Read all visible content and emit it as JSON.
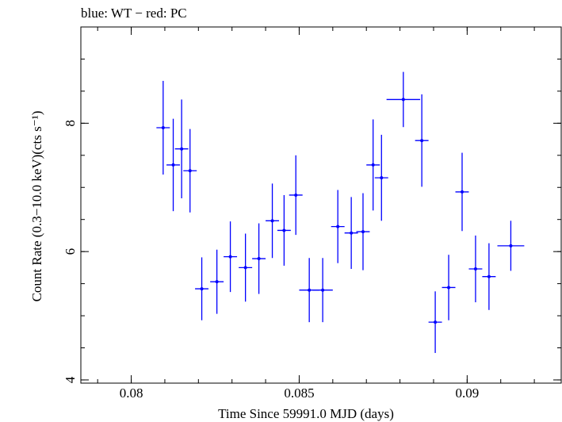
{
  "chart_data": {
    "type": "scatter",
    "title": "blue: WT − red: PC",
    "xlabel": "Time Since 59991.0 MJD (days)",
    "ylabel": "Count Rate (0.3−10.0 keV)(cts s⁻¹)",
    "xlim": [
      0.0785,
      0.0928
    ],
    "ylim": [
      3.95,
      9.5
    ],
    "x_ticks": [
      0.08,
      0.085,
      0.09
    ],
    "x_tick_labels": [
      "0.08",
      "0.085",
      "0.09"
    ],
    "y_ticks": [
      4,
      6,
      8
    ],
    "y_tick_labels": [
      "4",
      "6",
      "8"
    ],
    "grid": false,
    "series": [
      {
        "name": "WT",
        "color": "#0000ff",
        "points": [
          {
            "x": 0.08095,
            "xerr": 0.0002,
            "y": 7.93,
            "yerr": 0.73
          },
          {
            "x": 0.08125,
            "xerr": 0.0002,
            "y": 7.35,
            "yerr": 0.72
          },
          {
            "x": 0.0815,
            "xerr": 0.0002,
            "y": 7.6,
            "yerr": 0.77
          },
          {
            "x": 0.08175,
            "xerr": 0.0002,
            "y": 7.26,
            "yerr": 0.65
          },
          {
            "x": 0.0821,
            "xerr": 0.0002,
            "y": 5.42,
            "yerr": 0.49
          },
          {
            "x": 0.08255,
            "xerr": 0.0002,
            "y": 5.53,
            "yerr": 0.5
          },
          {
            "x": 0.08295,
            "xerr": 0.0002,
            "y": 5.92,
            "yerr": 0.55
          },
          {
            "x": 0.0834,
            "xerr": 0.0002,
            "y": 5.75,
            "yerr": 0.53
          },
          {
            "x": 0.0838,
            "xerr": 0.0002,
            "y": 5.89,
            "yerr": 0.55
          },
          {
            "x": 0.0842,
            "xerr": 0.0002,
            "y": 6.48,
            "yerr": 0.58
          },
          {
            "x": 0.08455,
            "xerr": 0.0002,
            "y": 6.33,
            "yerr": 0.55
          },
          {
            "x": 0.0849,
            "xerr": 0.0002,
            "y": 6.88,
            "yerr": 0.62
          },
          {
            "x": 0.0853,
            "xerr": 0.0003,
            "y": 5.4,
            "yerr": 0.5
          },
          {
            "x": 0.0857,
            "xerr": 0.0003,
            "y": 5.4,
            "yerr": 0.5
          },
          {
            "x": 0.08615,
            "xerr": 0.0002,
            "y": 6.39,
            "yerr": 0.57
          },
          {
            "x": 0.08655,
            "xerr": 0.0002,
            "y": 6.29,
            "yerr": 0.56
          },
          {
            "x": 0.0869,
            "xerr": 0.0002,
            "y": 6.31,
            "yerr": 0.6
          },
          {
            "x": 0.0872,
            "xerr": 0.0002,
            "y": 7.35,
            "yerr": 0.71
          },
          {
            "x": 0.08745,
            "xerr": 0.0002,
            "y": 7.15,
            "yerr": 0.67
          },
          {
            "x": 0.0881,
            "xerr": 0.0005,
            "y": 8.37,
            "yerr": 0.43
          },
          {
            "x": 0.08865,
            "xerr": 0.0002,
            "y": 7.73,
            "yerr": 0.72
          },
          {
            "x": 0.08905,
            "xerr": 0.0002,
            "y": 4.9,
            "yerr": 0.48
          },
          {
            "x": 0.08945,
            "xerr": 0.0002,
            "y": 5.44,
            "yerr": 0.51
          },
          {
            "x": 0.08985,
            "xerr": 0.0002,
            "y": 6.93,
            "yerr": 0.61
          },
          {
            "x": 0.09025,
            "xerr": 0.0002,
            "y": 5.73,
            "yerr": 0.52
          },
          {
            "x": 0.09065,
            "xerr": 0.0002,
            "y": 5.61,
            "yerr": 0.52
          },
          {
            "x": 0.0913,
            "xerr": 0.0004,
            "y": 6.09,
            "yerr": 0.39
          }
        ]
      }
    ]
  }
}
